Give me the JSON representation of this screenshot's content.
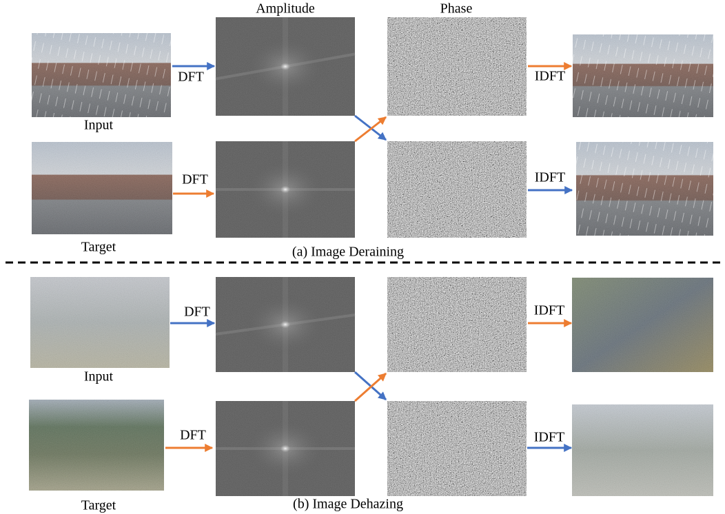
{
  "header": {
    "amplitude": "Amplitude",
    "phase": "Phase"
  },
  "panels": [
    {
      "caption": "(a) Image Deraining",
      "input_label": "Input",
      "target_label": "Target",
      "input_arrow": "DFT",
      "target_arrow": "DFT",
      "output_arrow_top": "IDFT",
      "output_arrow_bottom": "IDFT"
    },
    {
      "caption": "(b) Image Dehazing",
      "input_label": "Input",
      "target_label": "Target",
      "input_arrow": "DFT",
      "target_arrow": "DFT",
      "output_arrow_top": "IDFT",
      "output_arrow_bottom": "IDFT"
    }
  ]
}
